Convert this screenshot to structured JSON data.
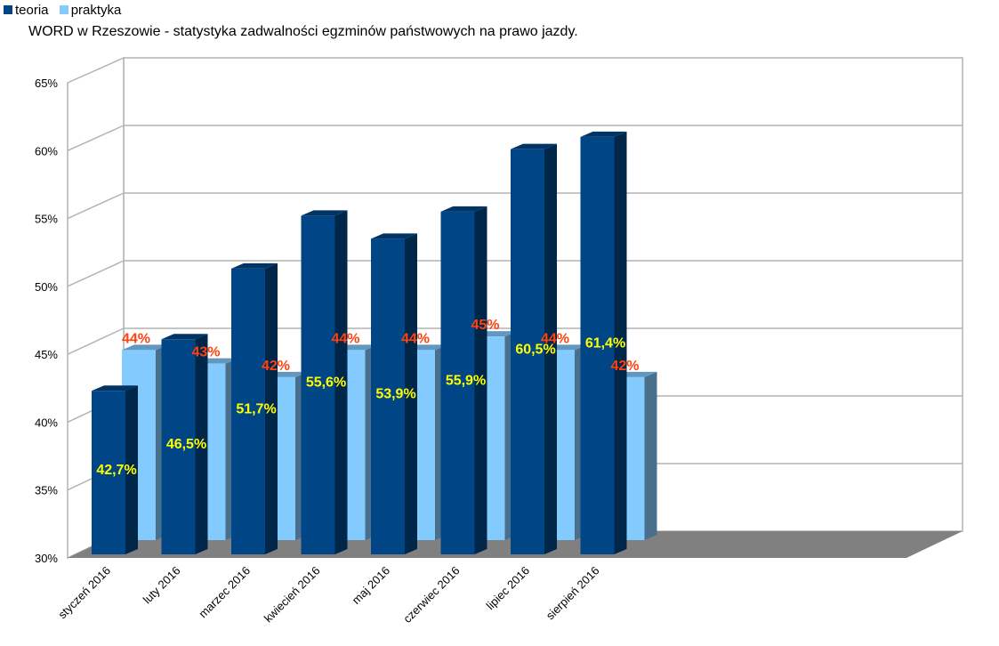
{
  "chart_data": {
    "type": "bar",
    "title": "WORD w Rzeszowie - statystyka zadwalności egzminów państwowych na prawo jazdy.",
    "categories": [
      "styczeń 2016",
      "luty 2016",
      "marzec 2016",
      "kwiecień 2016",
      "maj 2016",
      "czerwiec 2016",
      "lipiec 2016",
      "sierpień 2016"
    ],
    "series": [
      {
        "name": "teoria",
        "values": [
          42.7,
          46.5,
          51.7,
          55.6,
          53.9,
          55.9,
          60.5,
          61.4
        ],
        "labels": [
          "42,7%",
          "46,5%",
          "51,7%",
          "55,6%",
          "53,9%",
          "55,9%",
          "60,5%",
          "61,4%"
        ],
        "color": "#004586",
        "label_color": "#ffff00"
      },
      {
        "name": "praktyka",
        "values": [
          44,
          43,
          42,
          44,
          44,
          45,
          44,
          42
        ],
        "labels": [
          "44%",
          "43%",
          "42%",
          "44%",
          "44%",
          "45%",
          "44%",
          "42%"
        ],
        "color": "#83caff",
        "label_color": "#ff420e"
      }
    ],
    "ylim": [
      30,
      65
    ],
    "yticks": [
      "30%",
      "35%",
      "40%",
      "45%",
      "50%",
      "55%",
      "60%",
      "65%"
    ],
    "ytick_values": [
      30,
      35,
      40,
      45,
      50,
      55,
      60,
      65
    ],
    "xlabel": "",
    "ylabel": "",
    "grid": true,
    "legend_position": "top-left",
    "floor_color": "#808080"
  }
}
